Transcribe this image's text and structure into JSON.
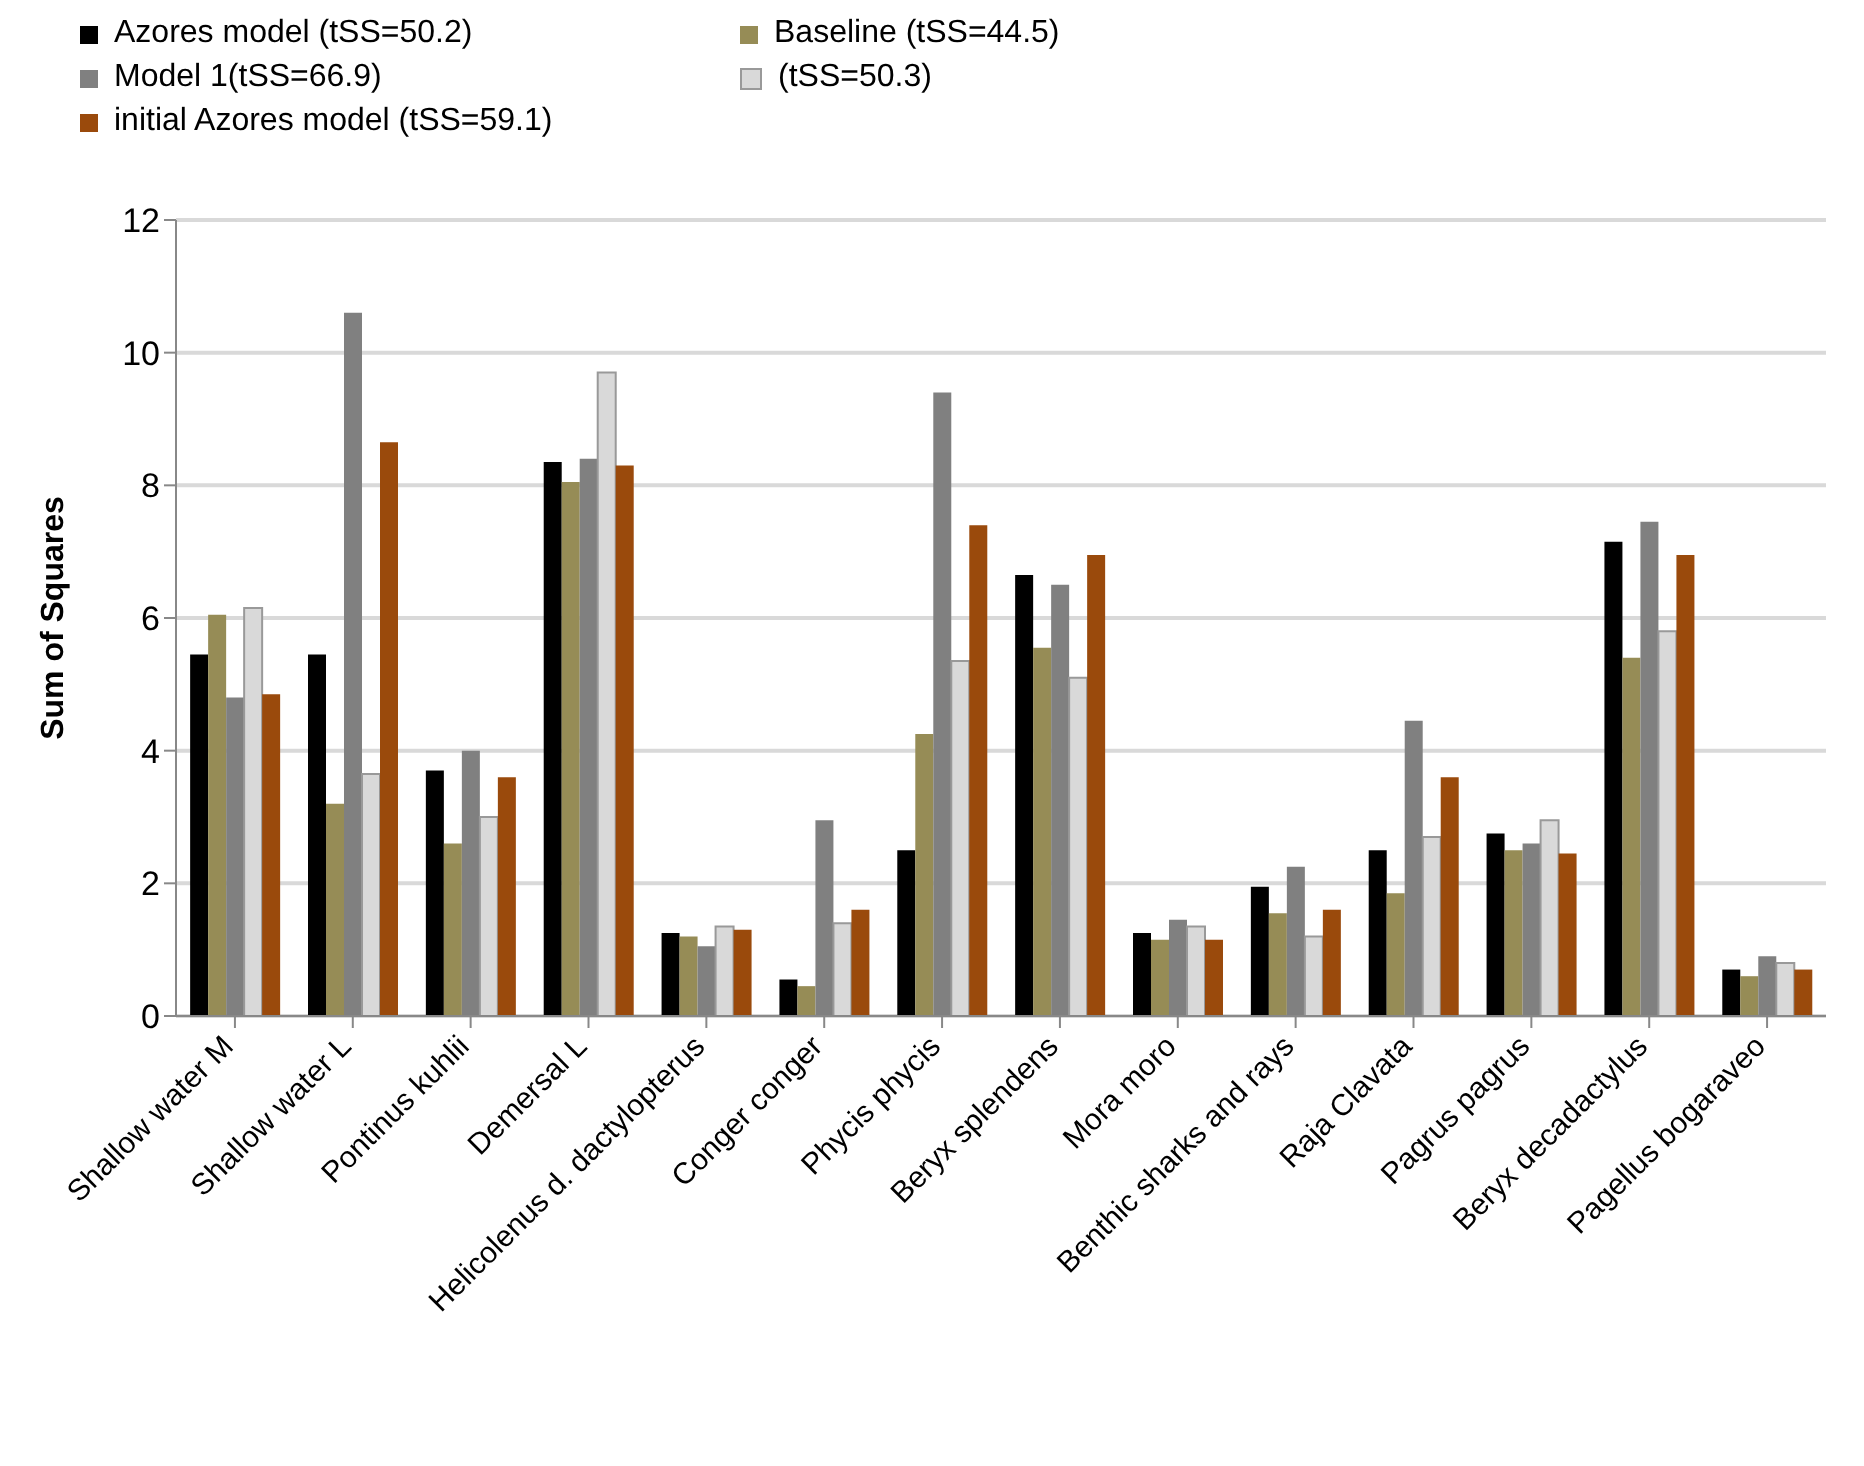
{
  "chart_data": {
    "type": "bar",
    "ylabel": "Sum of Squares",
    "categories": [
      "Shallow water M",
      "Shallow water L",
      "Pontinus kuhlii",
      "Demersal L",
      "Helicolenus d. dactylopterus",
      "Conger conger",
      "Phycis phycis",
      "Beryx splendens",
      "Mora moro",
      "Benthic sharks and rays",
      "Raja Clavata",
      "Pagrus pagrus",
      "Beryx decadactylus",
      "Pagellus bogaraveo"
    ],
    "series": [
      {
        "name": "Azores model (tSS=50.2)",
        "color": "#000000",
        "values": [
          5.45,
          5.45,
          3.7,
          8.35,
          1.25,
          0.55,
          2.5,
          6.65,
          1.25,
          1.95,
          2.5,
          2.75,
          7.15,
          0.7
        ]
      },
      {
        "name": "Baseline (tSS=44.5)",
        "color": "#968c56",
        "values": [
          6.05,
          3.2,
          2.6,
          8.05,
          1.2,
          0.45,
          4.25,
          5.55,
          1.15,
          1.55,
          1.85,
          2.5,
          5.4,
          0.6
        ]
      },
      {
        "name": "Model 1(tSS=66.9)",
        "color": "#808080",
        "values": [
          4.8,
          10.6,
          4.0,
          8.4,
          1.05,
          2.95,
          9.4,
          6.5,
          1.45,
          2.25,
          4.45,
          2.6,
          7.45,
          0.9
        ]
      },
      {
        "name": "(tSS=50.3)",
        "color": "#d9d9d9",
        "values": [
          6.15,
          3.65,
          3.0,
          9.7,
          1.35,
          1.4,
          5.35,
          5.1,
          1.35,
          1.2,
          2.7,
          2.95,
          5.8,
          0.8
        ]
      },
      {
        "name": "initial Azores model (tSS=59.1)",
        "color": "#9a4a0c",
        "values": [
          4.85,
          8.65,
          3.6,
          8.3,
          1.3,
          1.6,
          7.4,
          6.95,
          1.15,
          1.6,
          3.6,
          2.45,
          6.95,
          0.7
        ]
      }
    ],
    "ylim": [
      0,
      12
    ],
    "yticks": [
      0,
      2,
      4,
      6,
      8,
      10,
      12
    ],
    "grid": "y",
    "legend": "top"
  }
}
